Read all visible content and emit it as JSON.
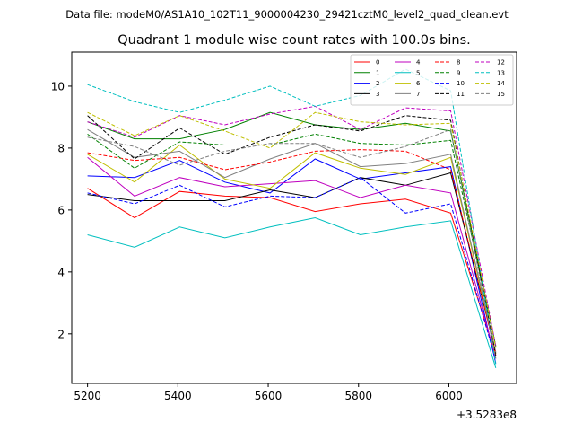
{
  "header": {
    "data_file": "Data file: modeM0/AS1A10_102T11_9000004230_29421cztM0_level2_quad_clean.evt"
  },
  "chart_data": {
    "type": "line",
    "title": "Quadrant 1 module wise count rates with 100.0s bins.",
    "xlabel": "",
    "ylabel": "",
    "x_offset_label": "+3.5283e8",
    "x": [
      5200,
      5304,
      5404,
      5504,
      5604,
      5704,
      5804,
      5904,
      6004,
      6104
    ],
    "xlim": [
      5165,
      6150
    ],
    "ylim": [
      0.4,
      11.1
    ],
    "xticks": [
      5200,
      5400,
      5600,
      5800,
      6000
    ],
    "xtick_labels": [
      "5200",
      "5400",
      "5600",
      "5800",
      "6000"
    ],
    "yticks": [
      2,
      4,
      6,
      8,
      10
    ],
    "ytick_labels": [
      "2",
      "4",
      "6",
      "8",
      "10"
    ],
    "grid": false,
    "legend_position": "top-right",
    "series": [
      {
        "name": "0",
        "color": "#ff0000",
        "dash": "solid",
        "values": [
          6.7,
          5.75,
          6.6,
          6.45,
          6.4,
          5.95,
          6.2,
          6.35,
          5.9,
          1.3
        ]
      },
      {
        "name": "1",
        "color": "#008000",
        "dash": "solid",
        "values": [
          8.85,
          8.3,
          8.3,
          8.6,
          9.15,
          8.75,
          8.6,
          8.8,
          8.55,
          1.6
        ]
      },
      {
        "name": "2",
        "color": "#0000ff",
        "dash": "solid",
        "values": [
          7.1,
          7.05,
          7.6,
          6.9,
          6.55,
          7.65,
          7.0,
          7.2,
          7.4,
          1.05
        ]
      },
      {
        "name": "3",
        "color": "#000000",
        "dash": "solid",
        "values": [
          6.5,
          6.3,
          6.3,
          6.3,
          6.65,
          6.4,
          7.05,
          6.8,
          7.2,
          1.4
        ]
      },
      {
        "name": "4",
        "color": "#bf00bf",
        "dash": "solid",
        "values": [
          7.7,
          6.45,
          7.05,
          6.75,
          6.85,
          6.95,
          6.4,
          6.8,
          6.55,
          1.2
        ]
      },
      {
        "name": "5",
        "color": "#00bfbf",
        "dash": "solid",
        "values": [
          5.2,
          4.8,
          5.45,
          5.1,
          5.45,
          5.75,
          5.2,
          5.45,
          5.65,
          0.9
        ]
      },
      {
        "name": "6",
        "color": "#bfbf00",
        "dash": "solid",
        "values": [
          7.8,
          6.9,
          8.1,
          7.0,
          6.7,
          7.85,
          7.35,
          7.15,
          7.7,
          1.35
        ]
      },
      {
        "name": "7",
        "color": "#808080",
        "dash": "solid",
        "values": [
          8.6,
          7.7,
          7.9,
          7.05,
          7.65,
          8.15,
          7.4,
          7.5,
          7.8,
          1.4
        ]
      },
      {
        "name": "8",
        "color": "#ff0000",
        "dash": "dashed",
        "values": [
          7.85,
          7.6,
          7.7,
          7.3,
          7.55,
          7.9,
          7.95,
          7.9,
          7.3,
          1.35
        ]
      },
      {
        "name": "9",
        "color": "#008000",
        "dash": "dashed",
        "values": [
          8.45,
          7.35,
          8.2,
          8.1,
          8.1,
          8.45,
          8.15,
          8.1,
          8.25,
          1.6
        ]
      },
      {
        "name": "10",
        "color": "#0000ff",
        "dash": "dashed",
        "values": [
          6.55,
          6.2,
          6.8,
          6.1,
          6.45,
          6.4,
          7.05,
          5.9,
          6.2,
          1.15
        ]
      },
      {
        "name": "11",
        "color": "#000000",
        "dash": "dashed",
        "values": [
          9.05,
          7.65,
          8.65,
          7.8,
          8.35,
          8.75,
          8.55,
          9.05,
          8.9,
          1.3
        ]
      },
      {
        "name": "12",
        "color": "#bf00bf",
        "dash": "dashed",
        "values": [
          8.85,
          8.35,
          9.05,
          8.75,
          9.1,
          9.35,
          8.6,
          9.3,
          9.2,
          1.6
        ]
      },
      {
        "name": "13",
        "color": "#00bfbf",
        "dash": "dashed",
        "values": [
          10.05,
          9.5,
          9.15,
          9.55,
          10.0,
          9.35,
          9.7,
          10.55,
          9.85,
          1.0
        ]
      },
      {
        "name": "14",
        "color": "#bfbf00",
        "dash": "dashed",
        "values": [
          9.15,
          8.4,
          9.05,
          8.55,
          8.0,
          9.15,
          8.85,
          8.75,
          8.8,
          1.55
        ]
      },
      {
        "name": "15",
        "color": "#808080",
        "dash": "dashed",
        "values": [
          8.35,
          8.05,
          7.45,
          7.9,
          8.15,
          8.15,
          7.7,
          8.05,
          8.6,
          1.2
        ]
      }
    ]
  }
}
